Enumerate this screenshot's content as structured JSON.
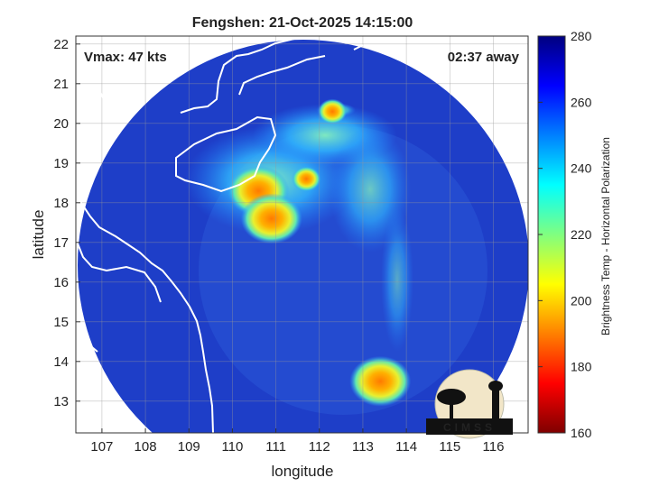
{
  "chart_data": {
    "type": "heatmap",
    "title": "Fengshen: 21-Oct-2025 14:15:00",
    "xlabel": "longitude",
    "ylabel": "latitude",
    "xlim": [
      106.4,
      116.8
    ],
    "ylim": [
      12.2,
      22.2
    ],
    "xticks": [
      "107",
      "108",
      "109",
      "110",
      "111",
      "112",
      "113",
      "114",
      "115",
      "116"
    ],
    "yticks": [
      "13",
      "14",
      "15",
      "16",
      "17",
      "18",
      "19",
      "20",
      "21",
      "22"
    ],
    "grid": true,
    "annotations": {
      "vmax": "Vmax: 47 kts",
      "time_away": "02:37 away"
    },
    "colorbar": {
      "label": "Brightness Temp - Horizontal Polarization",
      "range": [
        160,
        280
      ],
      "ticks": [
        "280",
        "260",
        "240",
        "220",
        "200",
        "180",
        "160"
      ]
    },
    "swath_center": [
      110.7,
      17.2
    ],
    "cold_cores": [
      {
        "lon": 110.6,
        "lat": 18.3,
        "bt": 190
      },
      {
        "lon": 110.9,
        "lat": 17.6,
        "bt": 195
      },
      {
        "lon": 111.7,
        "lat": 18.6,
        "bt": 205
      },
      {
        "lon": 113.4,
        "lat": 13.5,
        "bt": 190
      },
      {
        "lon": 112.3,
        "lat": 20.3,
        "bt": 215
      }
    ]
  },
  "colors": {
    "background_bt": "#1d3fc4",
    "coast": "#ffffff",
    "grid": "#bbbbbb"
  },
  "logo": {
    "text": "CIMSS"
  }
}
